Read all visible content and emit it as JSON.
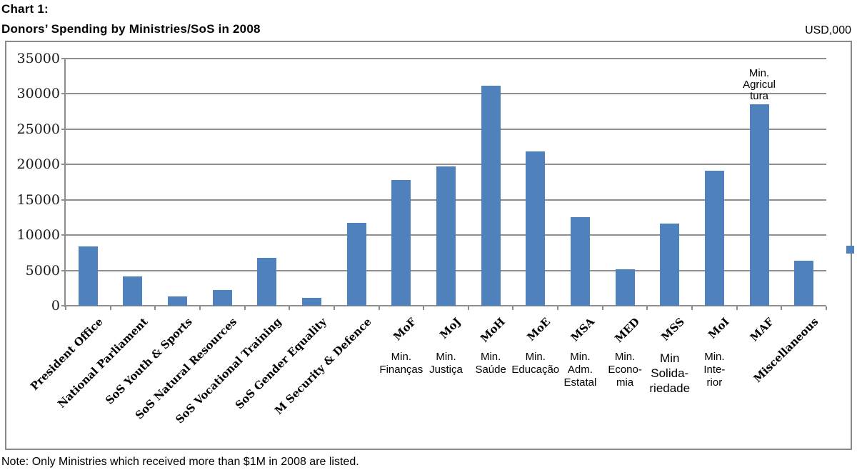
{
  "header": {
    "chart_label": "Chart 1:",
    "title": "Donors’ Spending by Ministries/SoS in 2008",
    "unit_label": "USD,000"
  },
  "footer": {
    "note": "Note: Only Ministries which received more than $1M in 2008 are listed."
  },
  "chart_data": {
    "type": "bar",
    "title": "Donors’ Spending by Ministries/SoS in 2008",
    "unit": "USD,000",
    "ylim": [
      0,
      35000
    ],
    "yticks": [
      0,
      5000,
      10000,
      15000,
      20000,
      25000,
      30000,
      35000
    ],
    "grid": true,
    "bar_color": "#4f81bd",
    "grid_color": "#8e8e8e",
    "legend": {
      "position": "right-middle",
      "marker_color": "#4f81bd",
      "label": ""
    },
    "categories": [
      "President Office",
      "National Parliament",
      "SoS Youth & Sports",
      "SoS Natural Resources",
      "SoS Vocational Training",
      "SoS Gender Equality",
      "M Security & Defence",
      "MoF",
      "MoJ",
      "MoH",
      "MoE",
      "MSA",
      "MED",
      "MSS",
      "MoI",
      "MAF",
      "Miscellaneous"
    ],
    "values": [
      8400,
      4100,
      1300,
      2200,
      6800,
      1100,
      11700,
      17800,
      19700,
      31200,
      21900,
      12500,
      5200,
      11600,
      19100,
      28500,
      6400
    ],
    "sublabels": [
      null,
      null,
      null,
      null,
      null,
      null,
      null,
      [
        "Min.",
        "Finanças"
      ],
      [
        "Min.",
        "Justiça"
      ],
      [
        "Min.",
        "Saúde"
      ],
      [
        "Min.",
        "Educação"
      ],
      [
        "Min.",
        "Adm.",
        "Estatal"
      ],
      [
        "Min.",
        "Econo-",
        "mia"
      ],
      [
        "Min",
        "Solida-",
        "riedade"
      ],
      [
        "Min.",
        "Inte-",
        "rior"
      ],
      null,
      null
    ],
    "sublabel_large_index": 13,
    "annotation": {
      "category_index": 15,
      "lines": [
        "Min.",
        "Agricul",
        "tura"
      ]
    }
  }
}
